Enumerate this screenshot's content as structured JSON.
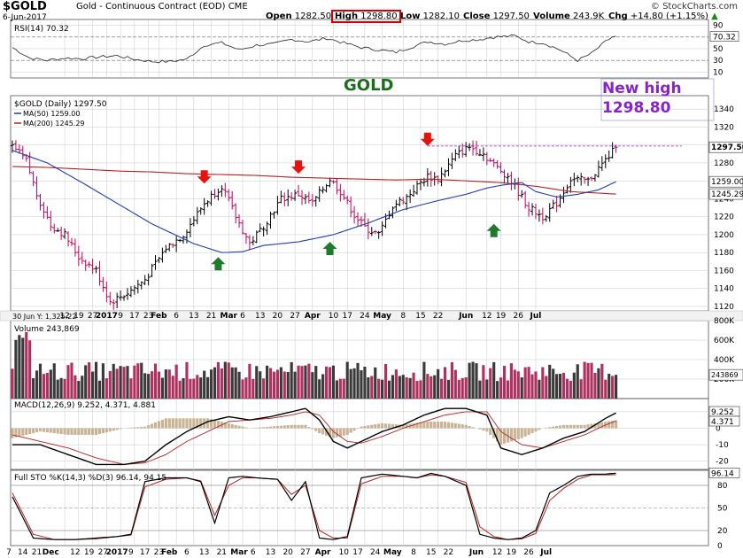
{
  "header": {
    "symbol": "$GOLD",
    "name": "Gold - Continuous Contract (EOD)",
    "exchange": "CME",
    "date": "6-Jun-2017",
    "copyright": "© StockCharts.com",
    "open_label": "Open",
    "open": "1282.50",
    "high_label": "High",
    "high": "1298.80",
    "low_label": "Low",
    "low": "1282.10",
    "close_label": "Close",
    "close": "1297.50",
    "volume_label": "Volume",
    "volume": "243.9K",
    "chg_label": "Chg",
    "chg": "+14.80 (+1.15%)",
    "chg_arrow": "▲"
  },
  "annotations": {
    "gold_label": "GOLD",
    "new_high_line1": "New high",
    "new_high_line2": "1298.80"
  },
  "colors": {
    "up": "#000000",
    "down": "#c4005a",
    "ma50": "#1f3ea8",
    "ma200": "#b22222",
    "arrow_red": "#e8120c",
    "arrow_green": "#1f7a2e",
    "highlight_purple": "#8a22cc",
    "volume_up": "#3a3a3a",
    "volume_down": "#b03060",
    "macd_hist": "#c8b394",
    "grid": "#c8c8c8"
  },
  "chart_data": [
    {
      "type": "line",
      "panel": "rsi",
      "title": "RSI(14) 70.32",
      "ylim": [
        0,
        100
      ],
      "yticks": [
        "90",
        "70.32",
        "50",
        "30",
        "10"
      ],
      "bands": [
        70,
        30
      ],
      "last": 70.32,
      "x": [
        0,
        5,
        10,
        15,
        20,
        25,
        30,
        35,
        40,
        45,
        50,
        55,
        60,
        65,
        70,
        75,
        80,
        85,
        90,
        95,
        100,
        105,
        110,
        115,
        119,
        124,
        129,
        134,
        138,
        144,
        148,
        152,
        157,
        162,
        166,
        170,
        172
      ],
      "values": [
        52,
        34,
        30,
        34,
        33,
        36,
        38,
        32,
        28,
        28,
        32,
        56,
        60,
        48,
        56,
        58,
        66,
        62,
        68,
        60,
        52,
        48,
        44,
        54,
        62,
        58,
        64,
        66,
        70,
        72,
        62,
        60,
        48,
        30,
        42,
        62,
        70.32
      ]
    },
    {
      "type": "ohlc",
      "panel": "price",
      "title": "$GOLD (Daily) 1297.50",
      "ylim": [
        1115,
        1355
      ],
      "yticks": [
        1340,
        1320,
        1300,
        1280,
        1260,
        1240,
        1220,
        1200,
        1180,
        1160,
        1140,
        1120
      ],
      "last_close": 1297.5,
      "resistance_level": 1298.8,
      "ma_legend": [
        "MA(50) 1259.00",
        "MA(200) 1245.29"
      ],
      "price_labels": [
        "1297.50",
        "1259.00",
        "1245.29"
      ],
      "x": [
        0,
        4,
        7,
        11,
        15,
        19,
        24,
        28,
        33,
        38,
        44,
        49,
        55,
        60,
        64,
        68,
        72,
        77,
        82,
        86,
        91,
        94,
        98,
        101,
        105,
        109,
        113,
        117,
        119,
        122,
        127,
        131,
        135,
        138,
        142,
        148,
        152,
        156,
        160,
        165,
        170,
        173
      ],
      "close": [
        1298,
        1282,
        1245,
        1210,
        1200,
        1175,
        1160,
        1125,
        1135,
        1150,
        1185,
        1200,
        1235,
        1255,
        1220,
        1190,
        1210,
        1240,
        1245,
        1235,
        1262,
        1248,
        1222,
        1208,
        1200,
        1232,
        1242,
        1258,
        1265,
        1262,
        1288,
        1298,
        1290,
        1278,
        1265,
        1230,
        1220,
        1235,
        1262,
        1260,
        1283,
        1297.5
      ],
      "ma50": {
        "x": [
          0,
          10,
          20,
          30,
          40,
          52,
          60,
          66,
          72,
          82,
          92,
          102,
          112,
          122,
          130,
          136,
          140,
          146,
          150,
          156,
          162,
          168,
          173
        ],
        "values": [
          1294,
          1280,
          1258,
          1235,
          1212,
          1190,
          1180,
          1181,
          1188,
          1192,
          1200,
          1213,
          1228,
          1238,
          1245,
          1252,
          1255,
          1258,
          1248,
          1242,
          1245,
          1250,
          1259
        ]
      },
      "ma200": {
        "x": [
          0,
          10,
          20,
          30,
          40,
          50,
          60,
          70,
          80,
          90,
          100,
          110,
          120,
          130,
          140,
          150,
          160,
          173
        ],
        "values": [
          1276,
          1275,
          1273,
          1271,
          1270,
          1268,
          1267,
          1266,
          1264,
          1263,
          1262,
          1261,
          1262,
          1260,
          1258,
          1254,
          1248,
          1245.29
        ]
      },
      "markers": [
        {
          "type": "down",
          "x": 55,
          "price": 1254
        },
        {
          "type": "down",
          "x": 82,
          "price": 1265
        },
        {
          "type": "down",
          "x": 119,
          "price": 1296
        },
        {
          "type": "up",
          "x": 59,
          "price": 1178
        },
        {
          "type": "up",
          "x": 91,
          "price": 1195
        },
        {
          "type": "up",
          "x": 138,
          "price": 1215
        }
      ]
    },
    {
      "type": "bar",
      "panel": "volume",
      "title": "Volume 243,869",
      "ylim": [
        0,
        800000
      ],
      "yticks": [
        "800K",
        "600K",
        "400K",
        "200K"
      ],
      "last": 243869,
      "last_label": "243869",
      "prev_close_label": "30 Jun Y: 1,325.22"
    },
    {
      "type": "line",
      "panel": "macd",
      "title": "MACD(12,26,9) 9.252, 4.371, 4.881",
      "ylim": [
        -25,
        18
      ],
      "yticks": [
        "10",
        "0",
        "-10",
        "-20"
      ],
      "price_labels": [
        "9.252",
        "4.371"
      ],
      "macd": {
        "x": [
          0,
          8,
          16,
          24,
          32,
          38,
          44,
          50,
          56,
          62,
          68,
          74,
          80,
          84,
          88,
          92,
          96,
          100,
          106,
          112,
          118,
          124,
          130,
          136,
          140,
          146,
          152,
          158,
          164,
          170,
          173
        ],
        "values": [
          -10,
          -10,
          -16,
          -22,
          -22,
          -20,
          -10,
          -2,
          4,
          7,
          5,
          7,
          10,
          12,
          5,
          -8,
          -12,
          -8,
          -2,
          2,
          8,
          12,
          12,
          8,
          -12,
          -16,
          -12,
          -6,
          -2,
          6,
          9.252
        ]
      },
      "signal": {
        "x": [
          0,
          8,
          16,
          24,
          32,
          38,
          44,
          50,
          56,
          62,
          68,
          74,
          80,
          84,
          88,
          92,
          96,
          100,
          106,
          112,
          118,
          124,
          130,
          136,
          140,
          146,
          152,
          158,
          164,
          170,
          173
        ],
        "values": [
          -4,
          -8,
          -12,
          -18,
          -22,
          -21,
          -16,
          -8,
          -2,
          4,
          5,
          6,
          8,
          10,
          8,
          -2,
          -8,
          -9,
          -5,
          0,
          4,
          8,
          10,
          10,
          -2,
          -10,
          -12,
          -8,
          -4,
          2,
          4.371
        ]
      }
    },
    {
      "type": "line",
      "panel": "stochastic",
      "title": "Full STO %K(14,3) %D(3) 96.14, 94.15",
      "ylim": [
        0,
        100
      ],
      "yticks": [
        "96.14",
        "80",
        "50",
        "20",
        "0"
      ],
      "k": {
        "x": [
          0,
          6,
          12,
          18,
          24,
          30,
          34,
          38,
          44,
          50,
          54,
          58,
          62,
          66,
          70,
          76,
          80,
          84,
          88,
          92,
          96,
          100,
          106,
          112,
          116,
          120,
          124,
          130,
          134,
          138,
          142,
          146,
          150,
          154,
          158,
          162,
          166,
          170,
          173
        ],
        "values": [
          65,
          10,
          8,
          8,
          10,
          12,
          15,
          85,
          90,
          90,
          85,
          30,
          90,
          92,
          90,
          88,
          60,
          85,
          10,
          8,
          12,
          90,
          95,
          92,
          90,
          96,
          92,
          80,
          15,
          10,
          8,
          10,
          20,
          70,
          80,
          92,
          95,
          95,
          96.14
        ]
      },
      "d": {
        "x": [
          0,
          6,
          12,
          18,
          24,
          30,
          34,
          38,
          44,
          50,
          54,
          58,
          62,
          66,
          70,
          76,
          80,
          84,
          88,
          92,
          96,
          100,
          106,
          112,
          116,
          120,
          124,
          130,
          134,
          138,
          142,
          146,
          150,
          154,
          158,
          162,
          166,
          170,
          173
        ],
        "values": [
          70,
          15,
          8,
          8,
          9,
          12,
          14,
          78,
          88,
          90,
          86,
          40,
          80,
          90,
          90,
          88,
          68,
          80,
          20,
          10,
          10,
          82,
          92,
          92,
          90,
          94,
          92,
          84,
          25,
          12,
          8,
          9,
          16,
          60,
          76,
          88,
          94,
          94,
          94.15
        ]
      }
    }
  ],
  "x_axis": {
    "labels": [
      {
        "text": "12",
        "x": 15
      },
      {
        "text": "19",
        "x": 19
      },
      {
        "text": "27",
        "x": 23
      },
      {
        "text": "2017",
        "x": 27
      },
      {
        "text": "9",
        "x": 31
      },
      {
        "text": "17",
        "x": 35
      },
      {
        "text": "23",
        "x": 39
      },
      {
        "text": "Feb",
        "x": 42
      },
      {
        "text": "6",
        "x": 47
      },
      {
        "text": "13",
        "x": 52
      },
      {
        "text": "21",
        "x": 57
      },
      {
        "text": "Mar",
        "x": 62
      },
      {
        "text": "6",
        "x": 66
      },
      {
        "text": "13",
        "x": 71
      },
      {
        "text": "20",
        "x": 76
      },
      {
        "text": "27",
        "x": 81
      },
      {
        "text": "Apr",
        "x": 86
      },
      {
        "text": "10",
        "x": 92
      },
      {
        "text": "17",
        "x": 96
      },
      {
        "text": "24",
        "x": 101
      },
      {
        "text": "May",
        "x": 106
      },
      {
        "text": "8",
        "x": 112
      },
      {
        "text": "15",
        "x": 117
      },
      {
        "text": "22",
        "x": 122
      },
      {
        "text": "Jun",
        "x": 130
      },
      {
        "text": "12",
        "x": 136
      },
      {
        "text": "19",
        "x": 140
      },
      {
        "text": "26",
        "x": 145
      },
      {
        "text": "Jul",
        "x": 150
      }
    ],
    "bottom_labels": [
      {
        "text": "7",
        "x": 0
      },
      {
        "text": "14",
        "x": 4
      },
      {
        "text": "21",
        "x": 8
      },
      {
        "text": "Dec",
        "x": 12
      },
      {
        "text": "12",
        "x": 19
      },
      {
        "text": "19",
        "x": 23
      },
      {
        "text": "27",
        "x": 27
      },
      {
        "text": "2017",
        "x": 31
      },
      {
        "text": "9",
        "x": 35
      },
      {
        "text": "17",
        "x": 39
      },
      {
        "text": "23",
        "x": 43
      },
      {
        "text": "Feb",
        "x": 46
      },
      {
        "text": "6",
        "x": 51
      },
      {
        "text": "13",
        "x": 56
      },
      {
        "text": "21",
        "x": 61
      },
      {
        "text": "Mar",
        "x": 66
      },
      {
        "text": "6",
        "x": 70
      },
      {
        "text": "13",
        "x": 75
      },
      {
        "text": "20",
        "x": 80
      },
      {
        "text": "27",
        "x": 85
      },
      {
        "text": "Apr",
        "x": 90
      },
      {
        "text": "10",
        "x": 96
      },
      {
        "text": "17",
        "x": 100
      },
      {
        "text": "24",
        "x": 105
      },
      {
        "text": "May",
        "x": 110
      },
      {
        "text": "8",
        "x": 116
      },
      {
        "text": "15",
        "x": 121
      },
      {
        "text": "22",
        "x": 126
      },
      {
        "text": "Jun",
        "x": 134
      },
      {
        "text": "12",
        "x": 140
      },
      {
        "text": "19",
        "x": 144
      },
      {
        "text": "26",
        "x": 149
      },
      {
        "text": "Jul",
        "x": 154
      }
    ]
  }
}
